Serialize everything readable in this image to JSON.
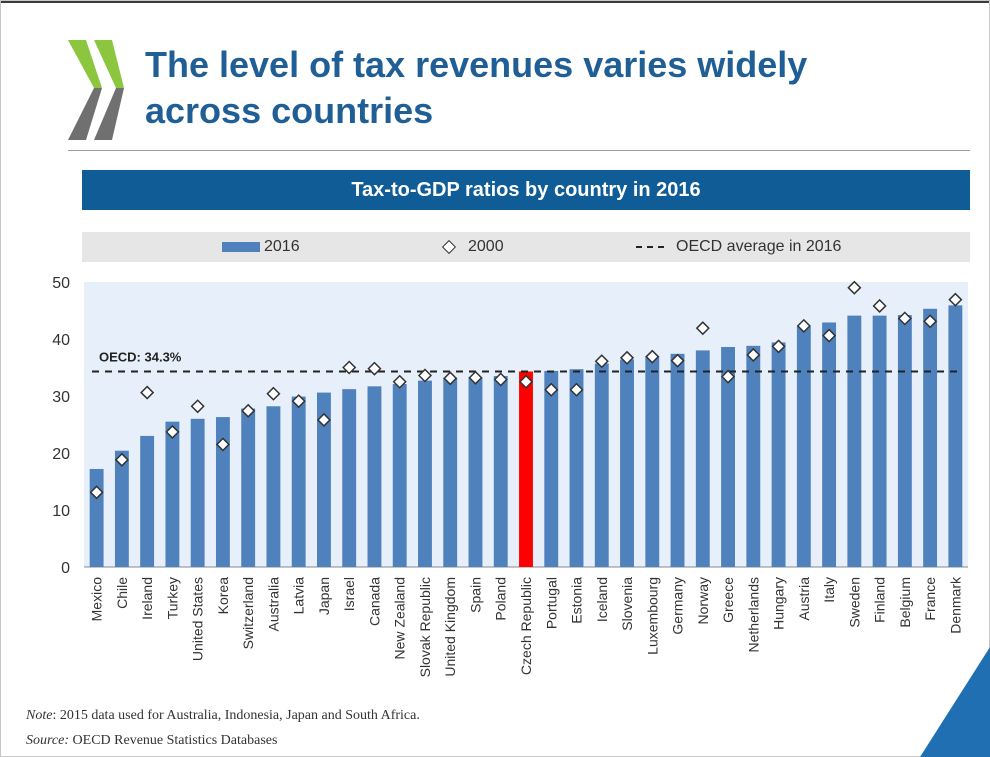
{
  "slide": {
    "title_line1": "The level of tax revenues varies widely",
    "title_line2": "across countries"
  },
  "chart_data": {
    "type": "bar",
    "title": "Tax-to-GDP ratios by country in 2016",
    "categories": [
      "Mexico",
      "Chile",
      "Ireland",
      "Turkey",
      "United States",
      "Korea",
      "Switzerland",
      "Australia",
      "Latvia",
      "Japan",
      "Israel",
      "Canada",
      "New Zealand",
      "Slovak Republic",
      "United Kingdom",
      "Spain",
      "Poland",
      "Czech Republic",
      "Portugal",
      "Estonia",
      "Iceland",
      "Slovenia",
      "Luxembourg",
      "Germany",
      "Norway",
      "Greece",
      "Netherlands",
      "Hungary",
      "Austria",
      "Italy",
      "Sweden",
      "Finland",
      "Belgium",
      "France",
      "Denmark"
    ],
    "series": [
      {
        "name": "2016",
        "type": "bar",
        "values": [
          17.2,
          20.4,
          23.0,
          25.5,
          26.0,
          26.3,
          27.8,
          28.2,
          29.9,
          30.6,
          31.2,
          31.7,
          32.1,
          32.7,
          33.2,
          33.3,
          33.5,
          34.3,
          34.4,
          34.7,
          35.7,
          36.4,
          37.0,
          37.4,
          38.0,
          38.6,
          38.8,
          39.4,
          42.2,
          42.9,
          44.1,
          44.1,
          44.2,
          45.3,
          45.9
        ]
      },
      {
        "name": "2000",
        "type": "scatter",
        "values": [
          13.1,
          18.8,
          30.6,
          23.7,
          28.2,
          21.5,
          27.4,
          30.4,
          29.1,
          25.8,
          35.0,
          34.8,
          32.5,
          33.6,
          33.1,
          33.2,
          32.9,
          32.5,
          31.1,
          31.1,
          36.1,
          36.7,
          36.9,
          36.2,
          41.9,
          33.4,
          37.2,
          38.7,
          42.3,
          40.6,
          49.0,
          45.8,
          43.6,
          43.1,
          46.9
        ]
      }
    ],
    "reference_line": {
      "name": "OECD average in 2016",
      "value": 34.3,
      "label": "OECD: 34.3%"
    },
    "highlight_category": "Czech Republic",
    "ylim": [
      0,
      50
    ],
    "yticks": [
      0,
      10,
      20,
      30,
      40,
      50
    ],
    "grid": false,
    "legend_placement": "top",
    "colors": {
      "bar": "#4f81bd",
      "highlight": "#ff0000",
      "reference": "#222222",
      "plot_bg": "#e7f0fa",
      "banner": "#0f5c96"
    }
  },
  "legend": {
    "bar_label": "2016",
    "diamond_label": "2000",
    "line_label": "OECD average in 2016"
  },
  "footnotes": {
    "note_label": "Note",
    "note_text": ": 2015 data used for Australia, Indonesia, Japan and South Africa.",
    "source_label": "Source:",
    "source_text": " OECD Revenue Statistics Databases"
  }
}
